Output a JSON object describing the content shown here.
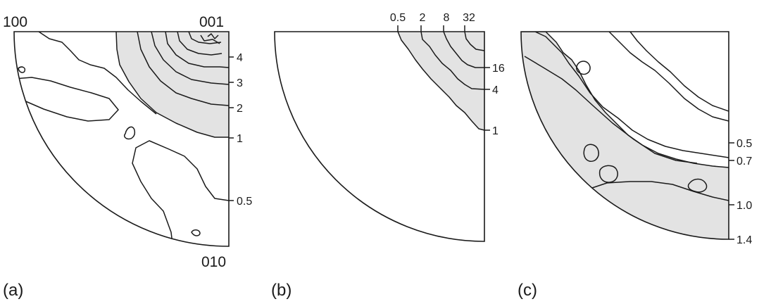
{
  "colors": {
    "shade": "#e3e3e3",
    "line": "#1a1a1a",
    "background": "#ffffff"
  },
  "panels": [
    {
      "id": "a",
      "panel_label": "(a)",
      "corners": {
        "top_left": "100",
        "top_right": "001",
        "bottom_right": "010"
      },
      "contour_labels": [
        "4",
        "3",
        "2",
        "1",
        "0.5"
      ]
    },
    {
      "id": "b",
      "panel_label": "(b)",
      "top_labels": [
        "0.5",
        "2",
        "8",
        "32"
      ],
      "right_labels": [
        "16",
        "4",
        "1"
      ]
    },
    {
      "id": "c",
      "panel_label": "(c)",
      "right_labels": [
        "0.5",
        "0.7",
        "1.0",
        "1.4"
      ]
    }
  ]
}
